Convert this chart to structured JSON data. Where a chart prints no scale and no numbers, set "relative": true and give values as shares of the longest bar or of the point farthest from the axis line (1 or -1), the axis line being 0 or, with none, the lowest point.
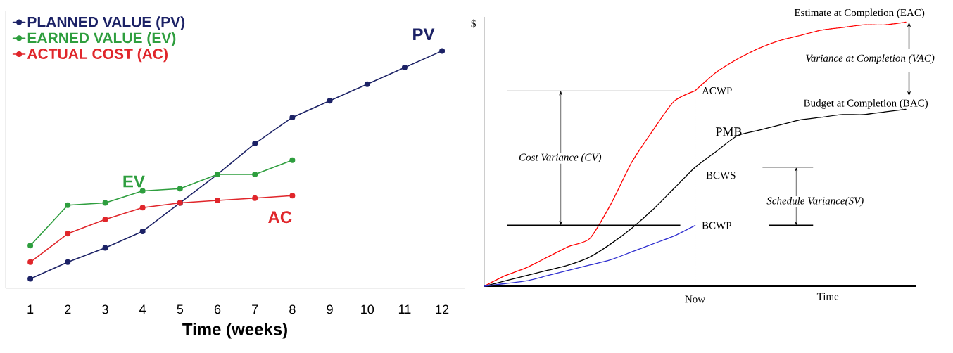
{
  "chart_data": [
    {
      "type": "line",
      "xlabel": "Time (weeks)",
      "categories": [
        "1",
        "2",
        "3",
        "4",
        "5",
        "6",
        "7",
        "8",
        "9",
        "10",
        "11",
        "12"
      ],
      "relative": true,
      "legend": "top left",
      "marker": "circle",
      "line_style": "solid",
      "grid": false,
      "series": [
        {
          "name": "PLANNED VALUE (PV)",
          "color": "#1c2266",
          "values": [
            0.04,
            0.11,
            0.17,
            0.24,
            0.36,
            0.48,
            0.61,
            0.72,
            0.79,
            0.86,
            0.93,
            1
          ]
        },
        {
          "name": "EARNED VALUE (EV)",
          "color": "#2e9e3e",
          "values": [
            0.18,
            0.35,
            0.36,
            0.41,
            0.42,
            0.48,
            0.48,
            0.54,
            null,
            null,
            null,
            null
          ]
        },
        {
          "name": "ACTUAL COST (AC)",
          "color": "#e0262b",
          "values": [
            0.11,
            0.23,
            0.29,
            0.34,
            0.36,
            0.37,
            0.38,
            0.39,
            null,
            null,
            null,
            null
          ]
        }
      ],
      "annotations": [
        "PV",
        "EV",
        "AC"
      ]
    },
    {
      "type": "line",
      "xlabel": "Time",
      "ylabel": "$",
      "categories": [
        null,
        null,
        null,
        null,
        null,
        null,
        null,
        null,
        null,
        null,
        null,
        null,
        null,
        null,
        null,
        null,
        null,
        null,
        null,
        null,
        null
      ],
      "relative": true,
      "legend": false,
      "marker": "none",
      "grid": false,
      "series": [
        {
          "name": "ACWP",
          "color": "#ff0000",
          "line_style": "solid",
          "values": [
            0,
            0.04,
            0.07,
            0.11,
            0.15,
            0.18,
            0.31,
            0.47,
            0.59,
            0.7,
            0.74,
            null,
            null,
            null,
            null,
            null,
            null,
            null,
            null,
            null,
            null
          ]
        },
        {
          "color": "#ff0000",
          "line_style": "dotted",
          "values": [
            null,
            null,
            null,
            null,
            null,
            null,
            null,
            null,
            null,
            null,
            0.74,
            0.81,
            0.86,
            0.9,
            0.93,
            0.95,
            0.97,
            0.98,
            0.99,
            0.99,
            1
          ]
        },
        {
          "name": "PMB",
          "color": "#000000",
          "line_style": "solid",
          "values": [
            0,
            0.02,
            0.04,
            0.06,
            0.08,
            0.11,
            0.16,
            0.22,
            0.29,
            0.37,
            0.45,
            0.51,
            0.57,
            0.59,
            0.61,
            0.63,
            0.64,
            0.65,
            0.65,
            0.66,
            0.67
          ]
        },
        {
          "name": "BCWP",
          "color": "#3030d0",
          "line_style": "solid",
          "values": [
            0,
            0.01,
            0.02,
            0.04,
            0.06,
            0.08,
            0.1,
            0.13,
            0.16,
            0.19,
            0.23,
            null,
            null,
            null,
            null,
            null,
            null,
            null,
            null,
            null,
            null
          ]
        }
      ],
      "ref_lines": [
        {
          "axis": "y",
          "value": 0.74,
          "color": "#808080",
          "line_style": "solid"
        },
        {
          "axis": "y",
          "value": 0.23,
          "color": "#000000",
          "line_style": "solid"
        },
        {
          "axis": "y",
          "value": 0.45,
          "color": "#000000",
          "line_style": "solid"
        }
      ],
      "annotations": [
        "Estimate at Completion (EAC)",
        "Variance at Completion (VAC)",
        "Budget at Completion (BAC)",
        "BCWS",
        "Cost Variance (CV)",
        "Schedule Variance(SV)",
        "Now"
      ]
    }
  ]
}
